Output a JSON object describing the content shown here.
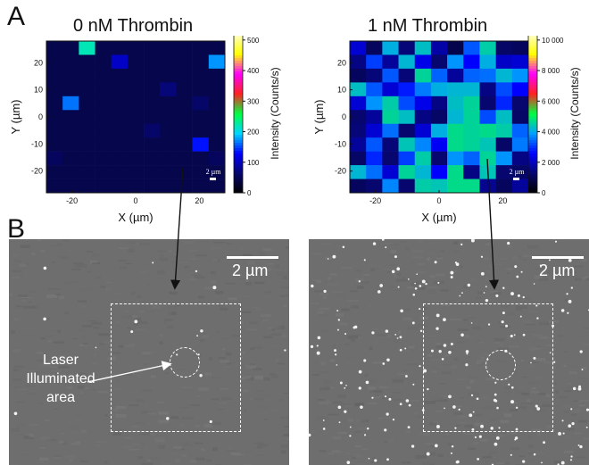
{
  "panels": {
    "A": "A",
    "B": "B"
  },
  "maps": [
    {
      "title": "0 nM Thrombin",
      "xlabel": "X (µm)",
      "ylabel": "Y (µm)",
      "xticks": [
        "-20",
        "0",
        "20"
      ],
      "yticks": [
        "20",
        "10",
        "0",
        "-10",
        "-20"
      ],
      "scalebar": "2 µm",
      "colorbar_label": "Intensity (Counts/s)",
      "colorbar_ticks": [
        "0",
        "100",
        "200",
        "300",
        "400",
        "500"
      ],
      "colorbar_max": 520,
      "colormap": [
        "#000000",
        "#06066e",
        "#0000ff",
        "#00d7ff",
        "#00ff40",
        "#ff2222",
        "#ff00ff",
        "#ffff00",
        "#ffffcc"
      ],
      "background_color": "#06064d"
    },
    {
      "title": "1 nM Thrombin",
      "xlabel": "X (µm)",
      "ylabel": "Y (µm)",
      "xticks": [
        "-20",
        "0",
        "20"
      ],
      "yticks": [
        "20",
        "10",
        "0",
        "-10",
        "-20"
      ],
      "scalebar": "2 µm",
      "colorbar_label": "Intensity (Counts/s)",
      "colorbar_ticks": [
        "0",
        "2 000",
        "4 000",
        "6 000",
        "8 000",
        "10 000"
      ],
      "colorbar_max": 10400,
      "colormap": [
        "#000000",
        "#06066e",
        "#0000ff",
        "#00a0ff",
        "#00ff40",
        "#ff2222",
        "#ff00ff",
        "#ffff00",
        "#ffffcc"
      ]
    }
  ],
  "sem": [
    {
      "scalebar": "2 µm",
      "laser_label": [
        "Laser",
        "Illuminated",
        "area"
      ]
    },
    {
      "scalebar": "2 µm"
    }
  ],
  "chart_data": [
    {
      "type": "heatmap",
      "title": "0 nM Thrombin",
      "xlabel": "X (µm)",
      "ylabel": "Y (µm)",
      "xlim": [
        -28,
        28
      ],
      "ylim": [
        -28,
        28
      ],
      "colorbar": {
        "label": "Intensity (Counts/s)",
        "range": [
          0,
          520
        ]
      },
      "grid_size": [
        11,
        11
      ],
      "background_value": 45,
      "cells": [
        {
          "col": 2,
          "row": 0,
          "value": 220
        },
        {
          "col": 4,
          "row": 1,
          "value": 105
        },
        {
          "col": 10,
          "row": 1,
          "value": 175
        },
        {
          "col": 1,
          "row": 4,
          "value": 165
        },
        {
          "col": 7,
          "row": 3,
          "value": 70
        },
        {
          "col": 9,
          "row": 4,
          "value": 62
        },
        {
          "col": 6,
          "row": 6,
          "value": 62
        },
        {
          "col": 9,
          "row": 7,
          "value": 135
        },
        {
          "col": 0,
          "row": 8,
          "value": 55
        },
        {
          "col": 10,
          "row": 8,
          "value": 55
        }
      ]
    },
    {
      "type": "heatmap",
      "title": "1 nM Thrombin",
      "xlabel": "X (µm)",
      "ylabel": "Y (µm)",
      "xlim": [
        -28,
        28
      ],
      "ylim": [
        -28,
        28
      ],
      "colorbar": {
        "label": "Intensity (Counts/s)",
        "range": [
          0,
          10400
        ]
      },
      "values": [
        [
          2200,
          1100,
          4100,
          1400,
          4300,
          1800,
          900,
          3300,
          4500,
          1200,
          1100
        ],
        [
          1500,
          3100,
          1700,
          4200,
          2400,
          1300,
          3800,
          2600,
          4100,
          2100,
          2200
        ],
        [
          1100,
          1400,
          3300,
          1400,
          4600,
          3400,
          1700,
          3400,
          3500,
          4200,
          3800
        ],
        [
          4300,
          3300,
          2200,
          2800,
          3600,
          4100,
          4200,
          4200,
          1500,
          3200,
          2600
        ],
        [
          2200,
          3800,
          4500,
          3200,
          2400,
          1500,
          4300,
          4600,
          1300,
          2900,
          1300
        ],
        [
          1300,
          1700,
          4600,
          4300,
          1500,
          1200,
          4200,
          4600,
          3200,
          4300,
          1200
        ],
        [
          1400,
          2200,
          3500,
          1300,
          2200,
          4100,
          4700,
          4600,
          4700,
          4500,
          3400
        ],
        [
          1700,
          3300,
          1400,
          4400,
          3700,
          2500,
          4700,
          4600,
          4400,
          1200,
          3600
        ],
        [
          1200,
          2900,
          1300,
          3100,
          4500,
          1300,
          3800,
          3400,
          4600,
          3800,
          1500
        ],
        [
          4200,
          3500,
          2200,
          4600,
          4200,
          2600,
          4700,
          1500,
          4400,
          1300,
          1200
        ],
        [
          1100,
          1300,
          3700,
          1300,
          4500,
          4400,
          4700,
          4700,
          1600,
          1100,
          1700
        ]
      ]
    }
  ]
}
